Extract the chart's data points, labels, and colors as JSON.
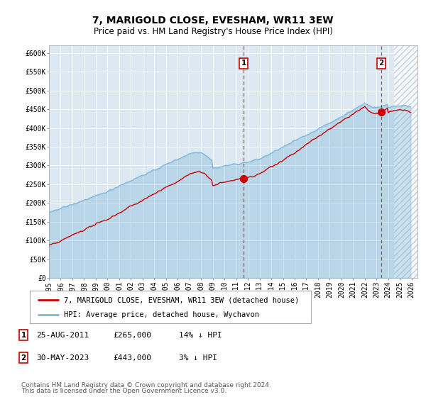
{
  "title": "7, MARIGOLD CLOSE, EVESHAM, WR11 3EW",
  "subtitle": "Price paid vs. HM Land Registry's House Price Index (HPI)",
  "hpi_color": "#7ab5d8",
  "property_color": "#cc0000",
  "fig_bg": "#ffffff",
  "plot_bg": "#dce9f3",
  "grid_color": "#b8cdd8",
  "yticks": [
    0,
    50000,
    100000,
    150000,
    200000,
    250000,
    300000,
    350000,
    400000,
    450000,
    500000,
    550000,
    600000
  ],
  "ytick_labels": [
    "£0",
    "£50K",
    "£100K",
    "£150K",
    "£200K",
    "£250K",
    "£300K",
    "£350K",
    "£400K",
    "£450K",
    "£500K",
    "£550K",
    "£600K"
  ],
  "ylim_max": 620000,
  "xmin": 1995,
  "xmax": 2026.5,
  "hatch_xstart": 2024.5,
  "sale1_x": 2011.646,
  "sale1_y": 265000,
  "sale2_x": 2023.411,
  "sale2_y": 443000,
  "legend_property": "7, MARIGOLD CLOSE, EVESHAM, WR11 3EW (detached house)",
  "legend_hpi": "HPI: Average price, detached house, Wychavon",
  "ann1_date": "25-AUG-2011",
  "ann1_price": "£265,000",
  "ann1_hpi": "14% ↓ HPI",
  "ann2_date": "30-MAY-2023",
  "ann2_price": "£443,000",
  "ann2_hpi": "3% ↓ HPI",
  "footnote_line1": "Contains HM Land Registry data © Crown copyright and database right 2024.",
  "footnote_line2": "This data is licensed under the Open Government Licence v3.0.",
  "title_fontsize": 10,
  "subtitle_fontsize": 8.5,
  "tick_fontsize": 7,
  "legend_fontsize": 7.5,
  "ann_fontsize": 8,
  "footnote_fontsize": 6.5
}
